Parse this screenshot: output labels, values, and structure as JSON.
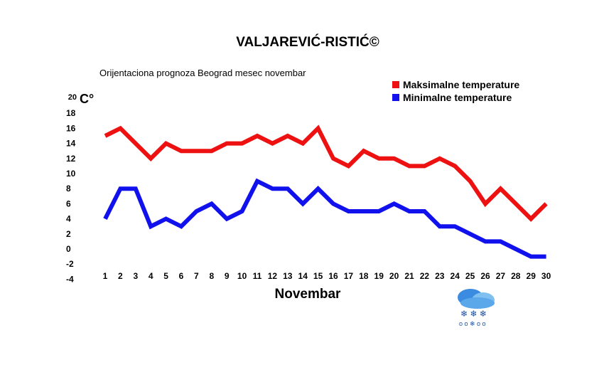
{
  "chart_data": {
    "type": "line",
    "title": "VALJAREVIĆ-RISTIĆ©",
    "subtitle": "Orijentaciona prognoza Beograd mesec novembar",
    "xlabel": "Novembar",
    "ylabel": "C°",
    "ylim": [
      -4,
      20
    ],
    "yticks": [
      20,
      18,
      16,
      14,
      12,
      10,
      8,
      6,
      4,
      2,
      0,
      -2,
      -4
    ],
    "x": [
      1,
      2,
      3,
      4,
      5,
      6,
      7,
      8,
      9,
      10,
      11,
      12,
      13,
      14,
      15,
      16,
      17,
      18,
      19,
      20,
      21,
      22,
      23,
      24,
      25,
      26,
      27,
      28,
      29,
      30
    ],
    "grid": false,
    "legend": "top-right",
    "series": [
      {
        "name": "Maksimalne temperature",
        "color": "#ee1111",
        "values": [
          15,
          16,
          14,
          12,
          14,
          13,
          13,
          13,
          14,
          14,
          15,
          14,
          15,
          14,
          16,
          12,
          11,
          13,
          12,
          12,
          11,
          11,
          12,
          11,
          9,
          6,
          8,
          6,
          4,
          6
        ]
      },
      {
        "name": "Minimalne temperature",
        "color": "#1111ee",
        "values": [
          4,
          8,
          8,
          3,
          4,
          3,
          5,
          6,
          4,
          5,
          9,
          8,
          8,
          6,
          8,
          6,
          5,
          5,
          5,
          6,
          5,
          5,
          3,
          3,
          2,
          1,
          1,
          0,
          -1,
          -1
        ]
      }
    ],
    "icon": "snow-cloud-icon"
  }
}
